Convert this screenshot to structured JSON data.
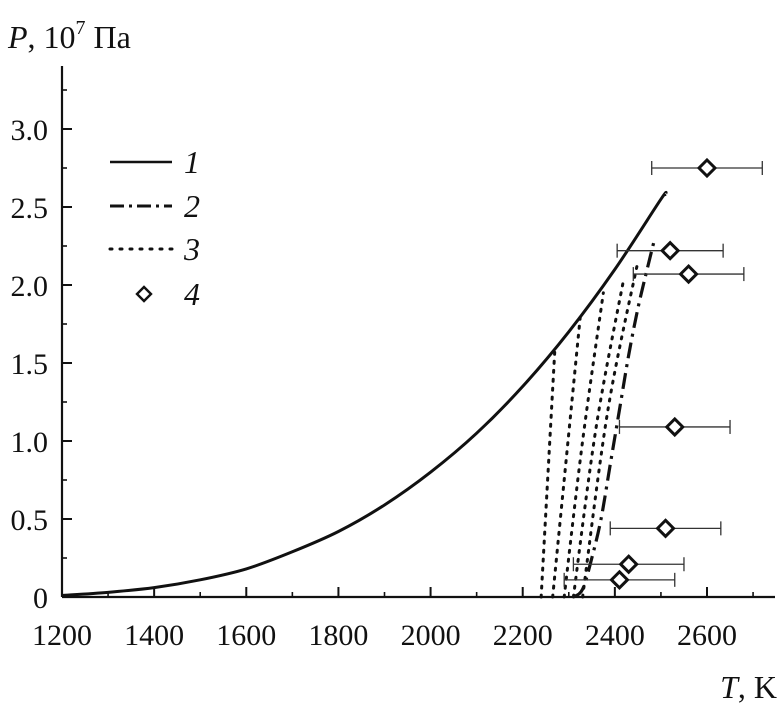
{
  "chart_data": {
    "type": "scatter",
    "title": "",
    "xlabel": {
      "symbol": "T",
      "unit": ", K"
    },
    "ylabel": {
      "symbol": "P",
      "unit_prefix": ", 10",
      "unit_exp": "7",
      "unit_suffix": " Па"
    },
    "xlim": [
      1200,
      2750
    ],
    "ylim": [
      0,
      3.35
    ],
    "xticks": [
      1200,
      1400,
      1600,
      1800,
      2000,
      2200,
      2400,
      2600
    ],
    "xtick_labels": [
      "1200",
      "1400",
      "1600",
      "1800",
      "2000",
      "2200",
      "2400",
      "2600"
    ],
    "yticks": [
      0,
      0.5,
      1.0,
      1.5,
      2.0,
      2.5,
      3.0
    ],
    "ytick_labels": [
      "0",
      "0.5",
      "1.0",
      "1.5",
      "2.0",
      "2.5",
      "3.0"
    ],
    "grid": false,
    "legend_position": "top-left",
    "series": [
      {
        "name": "1",
        "style": "solid",
        "x": [
          1200,
          1300,
          1400,
          1500,
          1600,
          1700,
          1800,
          1900,
          2000,
          2100,
          2200,
          2300,
          2400,
          2500,
          2510
        ],
        "y": [
          0.01,
          0.03,
          0.06,
          0.11,
          0.18,
          0.29,
          0.42,
          0.59,
          0.8,
          1.05,
          1.35,
          1.7,
          2.1,
          2.55,
          2.58
        ]
      },
      {
        "name": "2",
        "style": "dashdot",
        "x": [
          2310,
          2330,
          2350,
          2370,
          2390,
          2410,
          2430,
          2450,
          2470,
          2485
        ],
        "y": [
          0.0,
          0.05,
          0.25,
          0.5,
          0.85,
          1.2,
          1.55,
          1.85,
          2.1,
          2.28
        ]
      },
      {
        "name": "3",
        "style": "dotted",
        "curves": [
          {
            "x": [
              2240,
              2255,
              2270
            ],
            "y": [
              0.0,
              0.8,
              1.6
            ]
          },
          {
            "x": [
              2265,
              2295,
              2325
            ],
            "y": [
              0.0,
              0.9,
              1.8
            ]
          },
          {
            "x": [
              2290,
              2330,
              2375
            ],
            "y": [
              0.0,
              1.0,
              1.95
            ]
          },
          {
            "x": [
              2310,
              2360,
              2420
            ],
            "y": [
              0.0,
              1.1,
              2.05
            ]
          },
          {
            "x": [
              2330,
              2385,
              2450
            ],
            "y": [
              0.0,
              1.2,
              2.15
            ]
          }
        ]
      },
      {
        "name": "4",
        "style": "diamond",
        "points": [
          {
            "x": 2600,
            "y": 2.75,
            "xerr": 120
          },
          {
            "x": 2520,
            "y": 2.22,
            "xerr": 115
          },
          {
            "x": 2560,
            "y": 2.07,
            "xerr": 120
          },
          {
            "x": 2530,
            "y": 1.09,
            "xerr": 120
          },
          {
            "x": 2510,
            "y": 0.44,
            "xerr": 120
          },
          {
            "x": 2430,
            "y": 0.21,
            "xerr": 120
          },
          {
            "x": 2410,
            "y": 0.11,
            "xerr": 120
          }
        ]
      }
    ]
  }
}
